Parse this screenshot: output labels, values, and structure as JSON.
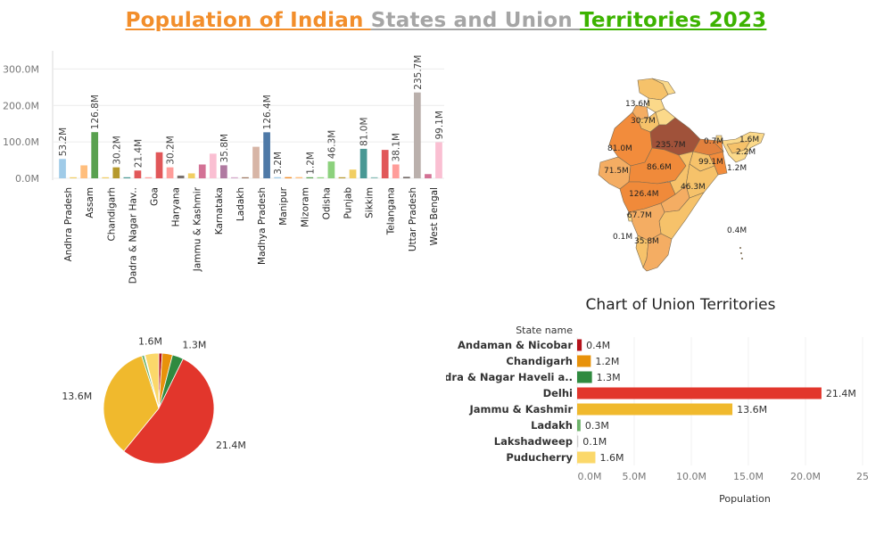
{
  "title_parts": [
    {
      "text": "Population of Indian ",
      "color": "#f28e2b"
    },
    {
      "text": "States and Union ",
      "color": "#a5a5a5"
    },
    {
      "text": "Territories 2023",
      "color": "#3cb300"
    }
  ],
  "chart_data": [
    {
      "type": "bar",
      "ylim": [
        0,
        350
      ],
      "yticks": [
        "0.0M",
        "100.0M",
        "200.0M",
        "300.0M"
      ],
      "ytick_values": [
        0,
        100,
        200,
        300
      ],
      "categories": [
        "Andhra Pradesh",
        "Assam",
        "Chandigarh",
        "Dadra & Nagar Hav..",
        "Goa",
        "Haryana",
        "Jammu & Kashmir",
        "Karnataka",
        "Ladakh",
        "Madhya Pradesh",
        "Manipur",
        "Mizoram",
        "Odisha",
        "Punjab",
        "Sikkim",
        "Telangana",
        "Uttar Pradesh",
        "West Bengal"
      ],
      "bars": [
        {
          "value": 53.2,
          "color": "#a0cbe8",
          "label": "53.2M"
        },
        {
          "value": 2,
          "color": "#f1ce63",
          "label": ""
        },
        {
          "value": 35.6,
          "color": "#ffbe7d",
          "label": ""
        },
        {
          "value": 126.8,
          "color": "#59a14f",
          "label": "126.8M"
        },
        {
          "value": 1.2,
          "color": "#f1ce63",
          "label": ""
        },
        {
          "value": 30.2,
          "color": "#b6992d",
          "label": "30.2M"
        },
        {
          "value": 1.3,
          "color": "#499894",
          "label": ""
        },
        {
          "value": 21.4,
          "color": "#e15759",
          "label": "21.4M"
        },
        {
          "value": 1.6,
          "color": "#ff9d9a",
          "label": ""
        },
        {
          "value": 71.5,
          "color": "#e15759",
          "label": ""
        },
        {
          "value": 30.2,
          "color": "#ff9d9a",
          "label": "30.2M"
        },
        {
          "value": 7.5,
          "color": "#79706e",
          "label": ""
        },
        {
          "value": 13.6,
          "color": "#f1ce63",
          "label": ""
        },
        {
          "value": 38,
          "color": "#d37295",
          "label": ""
        },
        {
          "value": 67.7,
          "color": "#fabfd2",
          "label": ""
        },
        {
          "value": 35.8,
          "color": "#b07aa1",
          "label": "35.8M"
        },
        {
          "value": 0.3,
          "color": "#d4a6c8",
          "label": ""
        },
        {
          "value": 0.1,
          "color": "#9d7660",
          "label": ""
        },
        {
          "value": 86.6,
          "color": "#d7b5a6",
          "label": ""
        },
        {
          "value": 126.4,
          "color": "#4e79a7",
          "label": "126.4M"
        },
        {
          "value": 3.2,
          "color": "#a0cbe8",
          "label": "3.2M"
        },
        {
          "value": 3.3,
          "color": "#f28e2b",
          "label": ""
        },
        {
          "value": 3.4,
          "color": "#ffbe7d",
          "label": ""
        },
        {
          "value": 1.2,
          "color": "#59a14f",
          "label": "1.2M"
        },
        {
          "value": 2.2,
          "color": "#8cd17d",
          "label": ""
        },
        {
          "value": 46.3,
          "color": "#8cd17d",
          "label": "46.3M"
        },
        {
          "value": 1.6,
          "color": "#b6992d",
          "label": ""
        },
        {
          "value": 24,
          "color": "#f1ce63",
          "label": ""
        },
        {
          "value": 81,
          "color": "#499894",
          "label": "81.0M"
        },
        {
          "value": 0.7,
          "color": "#86bcb6",
          "label": ""
        },
        {
          "value": 78,
          "color": "#e15759",
          "label": ""
        },
        {
          "value": 38.1,
          "color": "#ff9d9a",
          "label": "38.1M"
        },
        {
          "value": 4.2,
          "color": "#79706e",
          "label": ""
        },
        {
          "value": 235.7,
          "color": "#bab0ac",
          "label": "235.7M"
        },
        {
          "value": 11.6,
          "color": "#d37295",
          "label": ""
        },
        {
          "value": 99.1,
          "color": "#fabfd2",
          "label": "99.1M"
        }
      ]
    },
    {
      "type": "pie",
      "slices": [
        {
          "value": 0.4,
          "color": "#b5121b",
          "label": ""
        },
        {
          "value": 1.2,
          "color": "#e8920b",
          "label": ""
        },
        {
          "value": 1.3,
          "color": "#2f8a3f",
          "label": "1.3M"
        },
        {
          "value": 21.4,
          "color": "#e2362c",
          "label": "21.4M"
        },
        {
          "value": 13.6,
          "color": "#f0b92d",
          "label": "13.6M"
        },
        {
          "value": 0.3,
          "color": "#6db36a",
          "label": ""
        },
        {
          "value": 0.1,
          "color": "#cfcfcf",
          "label": ""
        },
        {
          "value": 1.6,
          "color": "#fbd86a",
          "label": "1.6M"
        }
      ]
    },
    {
      "type": "bar",
      "orientation": "horizontal",
      "title": "Chart of Union Territories",
      "row_header": "State name",
      "xlabel": "Population",
      "xlim": [
        0,
        25
      ],
      "xticks": [
        "0.0M",
        "5.0M",
        "10.0M",
        "15.0M",
        "20.0M",
        "25"
      ],
      "xtick_values": [
        0,
        5,
        10,
        15,
        20,
        25
      ],
      "rows": [
        {
          "name": "Andaman & Nicobar",
          "value": 0.4,
          "label": "0.4M",
          "color": "#b5121b"
        },
        {
          "name": "Chandigarh",
          "value": 1.2,
          "label": "1.2M",
          "color": "#e8920b"
        },
        {
          "name": "Dadra & Nagar Haveli a..",
          "value": 1.3,
          "label": "1.3M",
          "color": "#2f8a3f"
        },
        {
          "name": "Delhi",
          "value": 21.4,
          "label": "21.4M",
          "color": "#e2362c"
        },
        {
          "name": "Jammu & Kashmir",
          "value": 13.6,
          "label": "13.6M",
          "color": "#f0b92d"
        },
        {
          "name": "Ladakh",
          "value": 0.3,
          "label": "0.3M",
          "color": "#6db36a"
        },
        {
          "name": "Lakshadweep",
          "value": 0.1,
          "label": "0.1M",
          "color": "#cfcfcf"
        },
        {
          "name": "Puducherry",
          "value": 1.6,
          "label": "1.6M",
          "color": "#fbd86a"
        }
      ]
    }
  ],
  "map": {
    "labels": [
      "13.6M",
      "30.7M",
      "81.0M",
      "235.7M",
      "0.7M",
      "1.6M",
      "2.2M",
      "99.1M",
      "1.2M",
      "71.5M",
      "86.6M",
      "46.3M",
      "126.4M",
      "67.7M",
      "0.1M",
      "35.8M",
      "0.4M"
    ]
  }
}
